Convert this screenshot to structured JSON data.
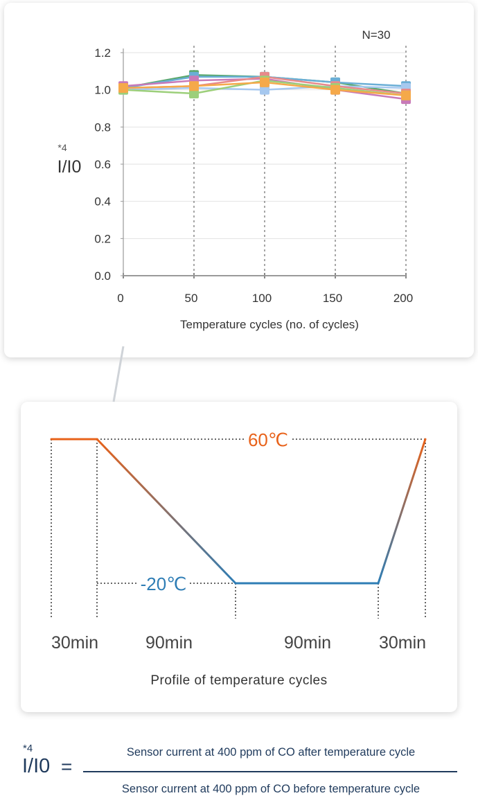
{
  "chart_data": [
    {
      "type": "line",
      "annotation": "N=30",
      "xlabel": "Temperature cycles (no. of cycles)",
      "ylabel": "I/I0",
      "ylabel_superscript": "*4",
      "x": [
        0,
        50,
        100,
        150,
        200
      ],
      "x_tick_labels": [
        "0",
        "50",
        "100",
        "150",
        "200"
      ],
      "y_tick_labels": [
        "0.0",
        "0.2",
        "0.4",
        "0.6",
        "0.8",
        "1.0",
        "1.2"
      ],
      "ylim": [
        0,
        1.2
      ],
      "xlim": [
        0,
        200
      ],
      "grid": "horizontal solid, vertical dotted",
      "series": [
        {
          "color": "#5aa86e",
          "values": [
            1.01,
            1.08,
            1.07,
            1.04,
            0.98
          ]
        },
        {
          "color": "#6aaed6",
          "values": [
            1.01,
            1.07,
            1.07,
            1.04,
            1.02
          ]
        },
        {
          "color": "#a6c8ef",
          "values": [
            1.0,
            1.01,
            1.0,
            1.02,
            1.01
          ]
        },
        {
          "color": "#c87ab8",
          "values": [
            1.02,
            1.05,
            1.06,
            1.0,
            0.95
          ]
        },
        {
          "color": "#e88a8a",
          "values": [
            1.01,
            1.02,
            1.07,
            1.02,
            0.98
          ]
        },
        {
          "color": "#9ccf7a",
          "values": [
            1.0,
            0.98,
            1.05,
            1.01,
            0.97
          ]
        },
        {
          "color": "#f5a94a",
          "values": [
            1.01,
            1.02,
            1.04,
            1.0,
            0.97
          ]
        }
      ]
    },
    {
      "type": "line",
      "title": "Profile of temperature cycles",
      "high_label": "60℃",
      "low_label": "-20℃",
      "high_color": "#e8621a",
      "low_color": "#2e7db5",
      "segments": [
        "30min",
        "90min",
        "90min",
        "30min"
      ]
    }
  ],
  "formula": {
    "superscript": "*4",
    "lhs": "I/I0",
    "equals": "=",
    "numerator": "Sensor current at 400 ppm of CO after temperature cycle",
    "denominator": "Sensor current at 400 ppm of CO before temperature cycle"
  }
}
